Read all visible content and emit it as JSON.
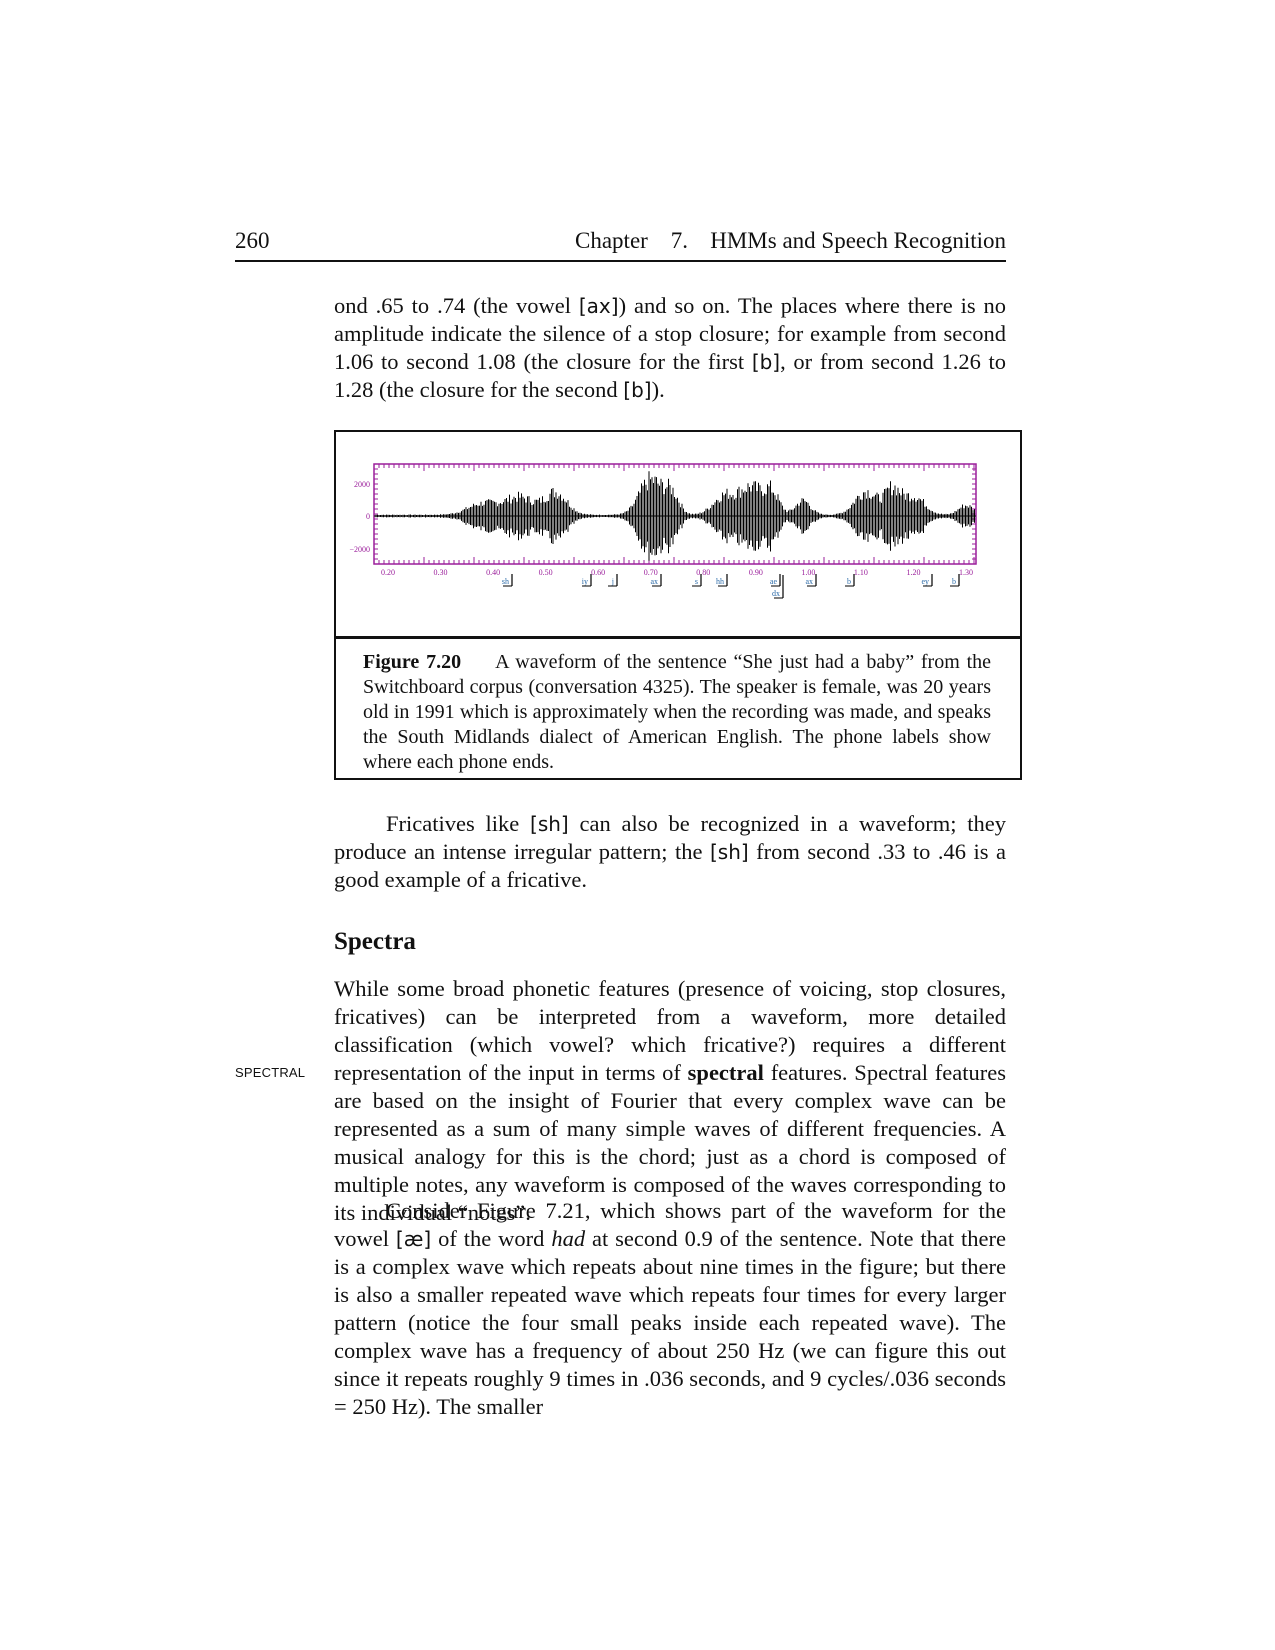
{
  "header": {
    "page_number": "260",
    "chapter": "Chapter    7.",
    "title": "HMMs and Speech Recognition"
  },
  "para1": {
    "t1": "ond .65 to .74 (the vowel ",
    "p1": "[ax]",
    "t2": ") and so on.  The places where there is no amplitude indicate the silence of a stop closure; for example from second 1.06 to second 1.08 (the closure for the first ",
    "p2": "[b]",
    "t3": ", or from second 1.26 to 1.28 (the closure for the second ",
    "p3": "[b]",
    "t4": ")."
  },
  "figure": {
    "y_ticks": [
      "2000",
      "0",
      "−2000"
    ],
    "x_ticks": [
      "0.20",
      "0.30",
      "0.40",
      "0.50",
      "0.60",
      "0.70",
      "0.80",
      "0.90",
      "1.00",
      "1.10",
      "1.20",
      "1.30"
    ],
    "phones": [
      "sh",
      "iy",
      "j",
      "ax",
      "s",
      "hh",
      "ae",
      "dx",
      "ax",
      "b",
      "ey",
      "b"
    ],
    "caption_label": "Figure 7.20",
    "caption_text": "A waveform of the sentence “She just had a baby” from the Switchboard corpus (conversation 4325). The speaker is female, was 20 years old in 1991 which is approximately when the recording was made, and speaks the South Midlands dialect of American English.  The phone labels show where each phone ends."
  },
  "para2": {
    "t1": "Fricatives like ",
    "p1": "[sh]",
    "t2": " can also be recognized in a waveform; they produce an intense irregular pattern; the ",
    "p2": "[sh]",
    "t3": " from second .33 to .46 is a good example of a fricative."
  },
  "section_heading": "Spectra",
  "margin_note": "SPECTRAL",
  "para3": {
    "t1": "While some broad phonetic features (presence of voicing, stop closures, fricatives) can be interpreted from a waveform, more detailed classification (which vowel?  which fricative?)  requires a different representation of the input in terms of ",
    "bold": "spectral",
    "t2": " features.  Spectral features are based on the insight of Fourier that every complex wave can be represented as a sum of many simple waves of different frequencies.  A musical analogy for this is the chord; just as a chord is composed of multiple notes, any waveform is composed of the waves corresponding to its individual “notes”."
  },
  "para4": {
    "t1": "Consider Figure 7.21, which shows part of the waveform for the vowel ",
    "p1": "[æ]",
    "t2": " of the word ",
    "it": "had",
    "t3": " at second 0.9 of the sentence.  Note that there is a complex wave which repeats about nine times in the figure; but there is also a smaller repeated wave which repeats four times for every larger pattern (notice the four small peaks inside each repeated wave). The complex wave has a frequency of about 250 Hz (we can figure this out since it repeats roughly 9 times in .036 seconds, and 9 cycles/.036 seconds = 250 Hz).  The smaller"
  }
}
